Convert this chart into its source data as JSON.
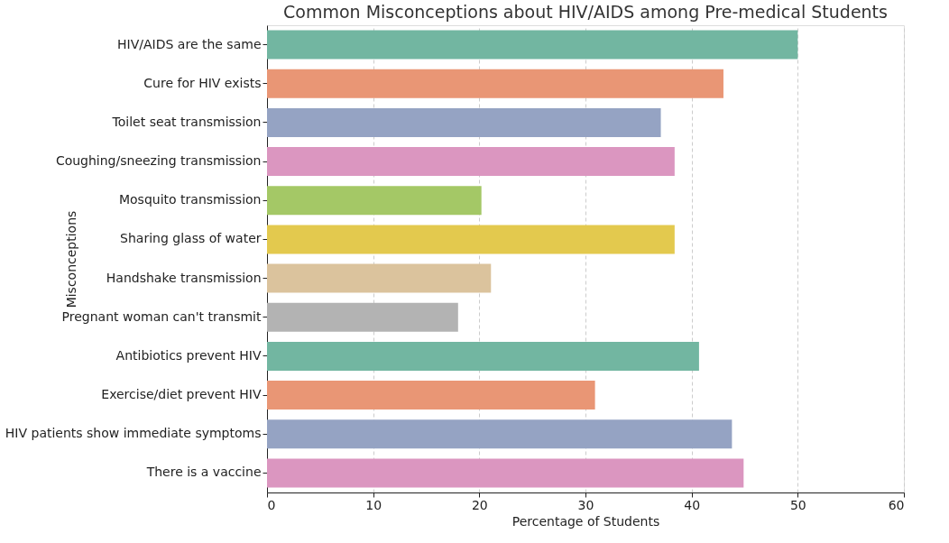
{
  "chart_data": {
    "type": "bar",
    "orientation": "horizontal",
    "title": "Common Misconceptions about HIV/AIDS among Pre-medical Students",
    "xlabel": "Percentage of Students",
    "ylabel": "Misconceptions",
    "categories": [
      "HIV/AIDS are the same",
      "Cure for HIV exists",
      "Toilet seat transmission",
      "Coughing/sneezing transmission",
      "Mosquito transmission",
      "Sharing glass of water",
      "Handshake transmission",
      "Pregnant woman can't transmit",
      "Antibiotics prevent HIV",
      "Exercise/diet prevent HIV",
      "HIV patients show immediate symptoms",
      "There is a vaccine"
    ],
    "values": [
      50,
      43,
      37.1,
      38.4,
      20.2,
      38.4,
      21.1,
      18,
      40.7,
      30.9,
      43.8,
      44.9
    ],
    "colors": [
      "#72b6a1",
      "#e99675",
      "#95a3c3",
      "#db96c0",
      "#a4c866",
      "#e3c94e",
      "#dbc39d",
      "#b3b3b3",
      "#72b6a1",
      "#e99675",
      "#95a3c3",
      "#db96c0"
    ],
    "xlim": [
      0,
      60
    ],
    "xticks": [
      0,
      10,
      20,
      30,
      40,
      50,
      60
    ],
    "grid": "x"
  }
}
